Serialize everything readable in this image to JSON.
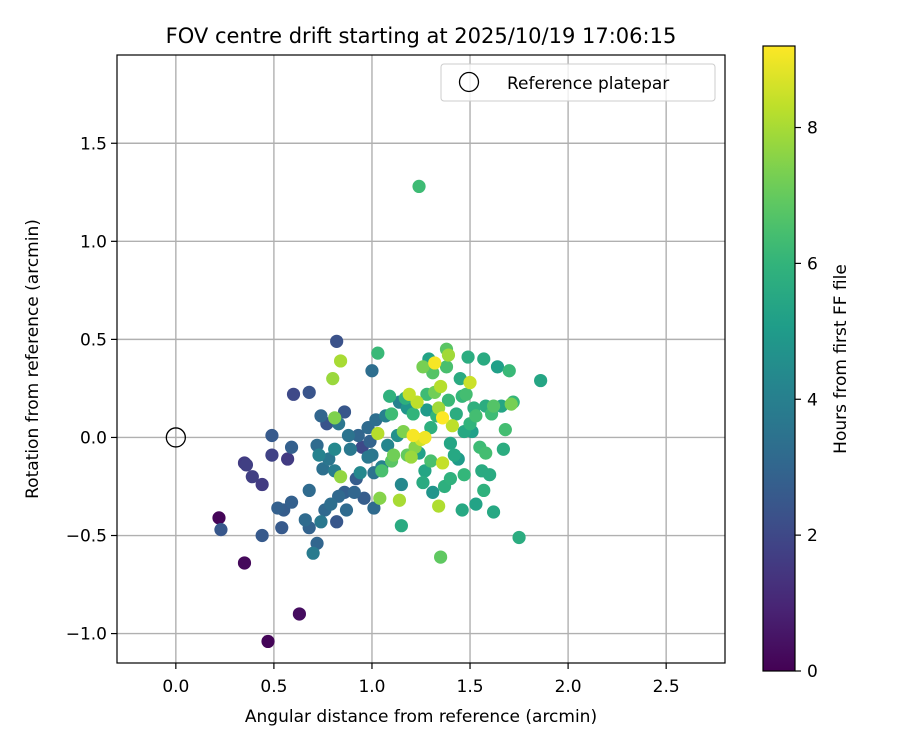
{
  "chart_data": {
    "type": "scatter",
    "title": "FOV centre drift starting at 2025/10/19 17:06:15",
    "xlabel": "Angular distance from reference (arcmin)",
    "ylabel": "Rotation from reference (arcmin)",
    "xlim": [
      -0.3,
      2.8
    ],
    "ylim": [
      -1.15,
      1.95
    ],
    "xticks": [
      0.0,
      0.5,
      1.0,
      1.5,
      2.0,
      2.5
    ],
    "xtick_labels": [
      "0.0",
      "0.5",
      "1.0",
      "1.5",
      "2.0",
      "2.5"
    ],
    "yticks": [
      -1.0,
      -0.5,
      0.0,
      0.5,
      1.0,
      1.5
    ],
    "ytick_labels": [
      "−1.0",
      "−0.5",
      "0.0",
      "0.5",
      "1.0",
      "1.5"
    ],
    "grid": true,
    "legend": {
      "position": "top-right",
      "label": "Reference platepar"
    },
    "reference_point": {
      "x": 0.0,
      "y": 0.0
    },
    "colorbar": {
      "label": "Hours from first FF file",
      "range": [
        0,
        9.2
      ],
      "ticks": [
        0,
        2,
        4,
        6,
        8
      ],
      "tick_labels": [
        "0",
        "2",
        "4",
        "6",
        "8"
      ],
      "colormap": "viridis"
    },
    "points": [
      {
        "x": 0.22,
        "y": -0.41,
        "h": 0.1
      },
      {
        "x": 0.47,
        "y": -1.04,
        "h": 0.1
      },
      {
        "x": 0.35,
        "y": -0.64,
        "h": 0.2
      },
      {
        "x": 0.63,
        "y": -0.9,
        "h": 0.3
      },
      {
        "x": 0.23,
        "y": -0.47,
        "h": 2.5
      },
      {
        "x": 0.35,
        "y": -0.13,
        "h": 1.6
      },
      {
        "x": 0.36,
        "y": -0.14,
        "h": 1.7
      },
      {
        "x": 0.39,
        "y": -0.2,
        "h": 1.7
      },
      {
        "x": 0.44,
        "y": -0.24,
        "h": 1.6
      },
      {
        "x": 0.44,
        "y": -0.5,
        "h": 2.6
      },
      {
        "x": 0.49,
        "y": 0.01,
        "h": 2.6
      },
      {
        "x": 0.49,
        "y": -0.09,
        "h": 1.8
      },
      {
        "x": 0.52,
        "y": -0.36,
        "h": 2.8
      },
      {
        "x": 0.54,
        "y": -0.46,
        "h": 2.6
      },
      {
        "x": 0.55,
        "y": -0.37,
        "h": 2.7
      },
      {
        "x": 0.57,
        "y": -0.11,
        "h": 1.6
      },
      {
        "x": 0.59,
        "y": -0.05,
        "h": 2.8
      },
      {
        "x": 0.59,
        "y": -0.33,
        "h": 2.8
      },
      {
        "x": 0.6,
        "y": 0.22,
        "h": 2.0
      },
      {
        "x": 0.66,
        "y": -0.42,
        "h": 3.2
      },
      {
        "x": 0.68,
        "y": 0.23,
        "h": 2.4
      },
      {
        "x": 0.68,
        "y": -0.27,
        "h": 3.2
      },
      {
        "x": 0.68,
        "y": -0.46,
        "h": 2.9
      },
      {
        "x": 0.7,
        "y": -0.59,
        "h": 3.8
      },
      {
        "x": 0.72,
        "y": -0.54,
        "h": 3.0
      },
      {
        "x": 0.72,
        "y": -0.04,
        "h": 3.2
      },
      {
        "x": 0.73,
        "y": -0.09,
        "h": 4.1
      },
      {
        "x": 0.74,
        "y": -0.43,
        "h": 3.7
      },
      {
        "x": 0.74,
        "y": 0.11,
        "h": 3.0
      },
      {
        "x": 0.75,
        "y": -0.16,
        "h": 3.4
      },
      {
        "x": 0.76,
        "y": -0.37,
        "h": 3.1
      },
      {
        "x": 0.77,
        "y": 0.07,
        "h": 2.4
      },
      {
        "x": 0.78,
        "y": -0.11,
        "h": 3.6
      },
      {
        "x": 0.79,
        "y": -0.34,
        "h": 3.3
      },
      {
        "x": 0.8,
        "y": 0.3,
        "h": 7.8
      },
      {
        "x": 0.81,
        "y": -0.17,
        "h": 3.9
      },
      {
        "x": 0.81,
        "y": -0.06,
        "h": 4.3
      },
      {
        "x": 0.81,
        "y": 0.1,
        "h": 7.4
      },
      {
        "x": 0.82,
        "y": -0.43,
        "h": 2.5
      },
      {
        "x": 0.82,
        "y": 0.49,
        "h": 2.3
      },
      {
        "x": 0.83,
        "y": -0.3,
        "h": 3.1
      },
      {
        "x": 0.83,
        "y": 0.07,
        "h": 3.6
      },
      {
        "x": 0.84,
        "y": 0.39,
        "h": 8.0
      },
      {
        "x": 0.84,
        "y": -0.2,
        "h": 7.7
      },
      {
        "x": 0.86,
        "y": -0.28,
        "h": 2.8
      },
      {
        "x": 0.86,
        "y": 0.13,
        "h": 2.5
      },
      {
        "x": 0.87,
        "y": -0.37,
        "h": 3.2
      },
      {
        "x": 0.88,
        "y": 0.01,
        "h": 3.5
      },
      {
        "x": 0.89,
        "y": -0.06,
        "h": 3.7
      },
      {
        "x": 0.91,
        "y": -0.28,
        "h": 3.0
      },
      {
        "x": 0.92,
        "y": -0.21,
        "h": 2.7
      },
      {
        "x": 0.93,
        "y": 0.01,
        "h": 3.0
      },
      {
        "x": 0.94,
        "y": -0.18,
        "h": 4.3
      },
      {
        "x": 0.95,
        "y": -0.05,
        "h": 2.0
      },
      {
        "x": 0.96,
        "y": -0.31,
        "h": 2.7
      },
      {
        "x": 0.98,
        "y": 0.05,
        "h": 3.2
      },
      {
        "x": 0.98,
        "y": -0.1,
        "h": 3.7
      },
      {
        "x": 0.99,
        "y": -0.02,
        "h": 2.9
      },
      {
        "x": 1.0,
        "y": 0.34,
        "h": 3.3
      },
      {
        "x": 1.0,
        "y": -0.09,
        "h": 3.6
      },
      {
        "x": 1.01,
        "y": -0.18,
        "h": 3.5
      },
      {
        "x": 1.01,
        "y": -0.36,
        "h": 3.2
      },
      {
        "x": 1.02,
        "y": 0.09,
        "h": 3.3
      },
      {
        "x": 1.03,
        "y": 0.43,
        "h": 6.2
      },
      {
        "x": 1.03,
        "y": 0.02,
        "h": 8.2
      },
      {
        "x": 1.04,
        "y": -0.31,
        "h": 7.5
      },
      {
        "x": 1.05,
        "y": -0.15,
        "h": 4.1
      },
      {
        "x": 1.05,
        "y": -0.17,
        "h": 6.5
      },
      {
        "x": 1.07,
        "y": 0.11,
        "h": 4.0
      },
      {
        "x": 1.08,
        "y": -0.04,
        "h": 4.2
      },
      {
        "x": 1.09,
        "y": 0.21,
        "h": 5.9
      },
      {
        "x": 1.1,
        "y": 0.12,
        "h": 6.3
      },
      {
        "x": 1.1,
        "y": -0.12,
        "h": 6.8
      },
      {
        "x": 1.11,
        "y": -0.09,
        "h": 7.2
      },
      {
        "x": 1.13,
        "y": 0.01,
        "h": 4.6
      },
      {
        "x": 1.14,
        "y": 0.18,
        "h": 4.1
      },
      {
        "x": 1.14,
        "y": -0.32,
        "h": 8.0
      },
      {
        "x": 1.15,
        "y": -0.24,
        "h": 4.3
      },
      {
        "x": 1.15,
        "y": -0.45,
        "h": 5.6
      },
      {
        "x": 1.16,
        "y": 0.03,
        "h": 7.4
      },
      {
        "x": 1.17,
        "y": 0.2,
        "h": 5.8
      },
      {
        "x": 1.18,
        "y": 0.15,
        "h": 4.8
      },
      {
        "x": 1.18,
        "y": -0.09,
        "h": 7.0
      },
      {
        "x": 1.19,
        "y": 0.22,
        "h": 8.4
      },
      {
        "x": 1.2,
        "y": -0.1,
        "h": 7.8
      },
      {
        "x": 1.21,
        "y": 0.01,
        "h": 9.1
      },
      {
        "x": 1.21,
        "y": 0.12,
        "h": 6.0
      },
      {
        "x": 1.22,
        "y": -0.05,
        "h": 7.5
      },
      {
        "x": 1.23,
        "y": 0.18,
        "h": 8.3
      },
      {
        "x": 1.24,
        "y": 1.28,
        "h": 6.3
      },
      {
        "x": 1.24,
        "y": -0.08,
        "h": 5.2
      },
      {
        "x": 1.25,
        "y": -0.01,
        "h": 8.6
      },
      {
        "x": 1.26,
        "y": 0.36,
        "h": 7.3
      },
      {
        "x": 1.26,
        "y": -0.23,
        "h": 5.6
      },
      {
        "x": 1.27,
        "y": 0.0,
        "h": 9.0
      },
      {
        "x": 1.27,
        "y": -0.17,
        "h": 5.4
      },
      {
        "x": 1.28,
        "y": 0.22,
        "h": 6.3
      },
      {
        "x": 1.28,
        "y": 0.14,
        "h": 5.0
      },
      {
        "x": 1.29,
        "y": 0.4,
        "h": 5.3
      },
      {
        "x": 1.3,
        "y": 0.05,
        "h": 5.8
      },
      {
        "x": 1.3,
        "y": -0.12,
        "h": 6.5
      },
      {
        "x": 1.31,
        "y": 0.33,
        "h": 6.7
      },
      {
        "x": 1.31,
        "y": -0.28,
        "h": 4.8
      },
      {
        "x": 1.32,
        "y": 0.38,
        "h": 9.1
      },
      {
        "x": 1.32,
        "y": 0.23,
        "h": 7.2
      },
      {
        "x": 1.33,
        "y": 0.11,
        "h": 6.0
      },
      {
        "x": 1.34,
        "y": -0.35,
        "h": 8.1
      },
      {
        "x": 1.34,
        "y": 0.15,
        "h": 7.9
      },
      {
        "x": 1.35,
        "y": -0.61,
        "h": 6.9
      },
      {
        "x": 1.35,
        "y": 0.26,
        "h": 8.2
      },
      {
        "x": 1.36,
        "y": 0.1,
        "h": 9.2
      },
      {
        "x": 1.36,
        "y": -0.13,
        "h": 8.4
      },
      {
        "x": 1.37,
        "y": -0.25,
        "h": 5.8
      },
      {
        "x": 1.38,
        "y": 0.45,
        "h": 6.8
      },
      {
        "x": 1.38,
        "y": 0.36,
        "h": 6.5
      },
      {
        "x": 1.39,
        "y": 0.42,
        "h": 7.9
      },
      {
        "x": 1.39,
        "y": 0.19,
        "h": 6.2
      },
      {
        "x": 1.4,
        "y": -0.03,
        "h": 5.4
      },
      {
        "x": 1.4,
        "y": -0.21,
        "h": 5.9
      },
      {
        "x": 1.41,
        "y": 0.06,
        "h": 8.3
      },
      {
        "x": 1.42,
        "y": -0.09,
        "h": 5.5
      },
      {
        "x": 1.43,
        "y": 0.12,
        "h": 5.7
      },
      {
        "x": 1.44,
        "y": -0.11,
        "h": 5.0
      },
      {
        "x": 1.45,
        "y": 0.3,
        "h": 5.6
      },
      {
        "x": 1.46,
        "y": -0.37,
        "h": 5.5
      },
      {
        "x": 1.46,
        "y": 0.21,
        "h": 6.1
      },
      {
        "x": 1.47,
        "y": 0.03,
        "h": 5.5
      },
      {
        "x": 1.47,
        "y": -0.19,
        "h": 6.1
      },
      {
        "x": 1.48,
        "y": 0.22,
        "h": 6.4
      },
      {
        "x": 1.49,
        "y": 0.41,
        "h": 5.7
      },
      {
        "x": 1.5,
        "y": 0.28,
        "h": 8.5
      },
      {
        "x": 1.5,
        "y": 0.07,
        "h": 6.0
      },
      {
        "x": 1.51,
        "y": 0.03,
        "h": 5.2
      },
      {
        "x": 1.52,
        "y": 0.15,
        "h": 5.8
      },
      {
        "x": 1.53,
        "y": -0.34,
        "h": 5.3
      },
      {
        "x": 1.53,
        "y": 0.11,
        "h": 6.4
      },
      {
        "x": 1.55,
        "y": -0.05,
        "h": 6.3
      },
      {
        "x": 1.56,
        "y": -0.17,
        "h": 5.6
      },
      {
        "x": 1.57,
        "y": 0.4,
        "h": 5.6
      },
      {
        "x": 1.57,
        "y": -0.27,
        "h": 5.9
      },
      {
        "x": 1.58,
        "y": 0.16,
        "h": 5.7
      },
      {
        "x": 1.58,
        "y": -0.08,
        "h": 6.4
      },
      {
        "x": 1.6,
        "y": -0.19,
        "h": 5.6
      },
      {
        "x": 1.61,
        "y": 0.12,
        "h": 6.3
      },
      {
        "x": 1.62,
        "y": 0.16,
        "h": 6.7
      },
      {
        "x": 1.62,
        "y": -0.38,
        "h": 5.5
      },
      {
        "x": 1.64,
        "y": 0.36,
        "h": 5.2
      },
      {
        "x": 1.66,
        "y": 0.16,
        "h": 5.4
      },
      {
        "x": 1.67,
        "y": -0.06,
        "h": 5.7
      },
      {
        "x": 1.68,
        "y": 0.04,
        "h": 6.4
      },
      {
        "x": 1.7,
        "y": 0.34,
        "h": 6.2
      },
      {
        "x": 1.71,
        "y": 0.17,
        "h": 7.3
      },
      {
        "x": 1.72,
        "y": 0.18,
        "h": 6.1
      },
      {
        "x": 1.75,
        "y": -0.51,
        "h": 5.7
      },
      {
        "x": 1.86,
        "y": 0.29,
        "h": 5.4
      }
    ]
  }
}
